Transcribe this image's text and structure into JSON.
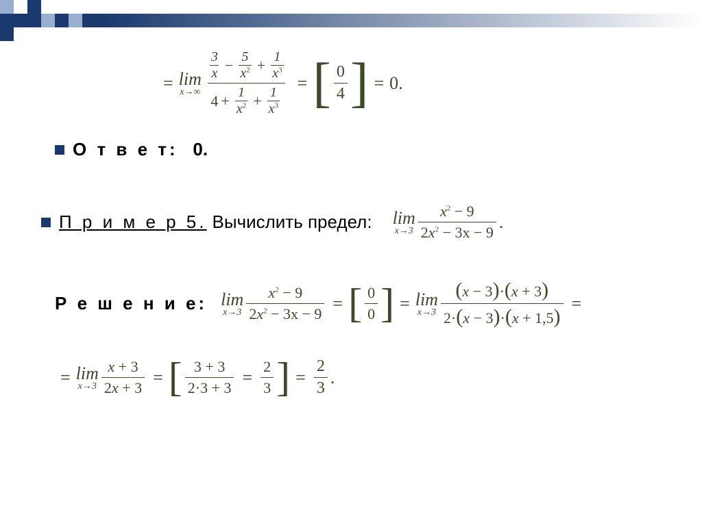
{
  "decoration": {
    "squares": [
      {
        "c": "#9aaed0"
      },
      {
        "c": "transparent"
      },
      {
        "c": "#1a3a6e"
      },
      {
        "c": "transparent"
      },
      {
        "c": "transparent"
      },
      {
        "c": "transparent"
      },
      {
        "c": "transparent"
      },
      {
        "c": "transparent"
      },
      {
        "c": "transparent"
      },
      {
        "c": "transparent"
      },
      {
        "c": "#1a3a6e"
      },
      {
        "c": "#1a3a6e"
      },
      {
        "c": "#9aaed0"
      },
      {
        "c": "transparent"
      },
      {
        "c": "#9aaed0"
      },
      {
        "c": "transparent"
      },
      {
        "c": "transparent"
      },
      {
        "c": "transparent"
      },
      {
        "c": "#1a3a6e"
      },
      {
        "c": "transparent"
      },
      {
        "c": "transparent"
      },
      {
        "c": "transparent"
      },
      {
        "c": "transparent"
      },
      {
        "c": "transparent"
      },
      {
        "c": "transparent"
      },
      {
        "c": "transparent"
      },
      {
        "c": "transparent"
      }
    ]
  },
  "colors": {
    "math": "#3a4a2a",
    "accent": "#1a3a6e",
    "text": "#000000",
    "bg": "#ffffff"
  },
  "typography": {
    "math_font": "Times New Roman",
    "body_font": "Arial",
    "base_size": 26
  },
  "eq1": {
    "lim": "lim",
    "sub": "x→∞",
    "n1": "3",
    "d1": "x",
    "op1": "−",
    "n2": "5",
    "d2": "x",
    "d2e": "2",
    "op2": "+",
    "n3": "1",
    "d3": "x",
    "d3e": "3",
    "den_lead": "4",
    "dop1": "+",
    "dn1": "1",
    "dd1": "x",
    "dd1e": "2",
    "dop2": "+",
    "dn2": "1",
    "dd2": "x",
    "dd2e": "3",
    "br_n": "0",
    "br_d": "4",
    "result": "0",
    "dot": "."
  },
  "answer": {
    "label": "О т в е т:",
    "value": "0."
  },
  "ex5": {
    "label": "П р и м е р  5.",
    "text": "Вычислить предел:",
    "lim": "lim",
    "sub": "x→3",
    "num": "x",
    "ne": "2",
    "nm": "− 9",
    "den_a": "2x",
    "de": "2",
    "den_b": "− 3x − 9",
    "dot": "."
  },
  "sol": {
    "label": "Р е ш е н и е:",
    "lim1": "lim",
    "sub1": "x→3",
    "s1n_a": "x",
    "s1n_e": "2",
    "s1n_b": "− 9",
    "s1d_a": "2x",
    "s1d_e": "2",
    "s1d_b": "− 3x − 9",
    "br1n": "0",
    "br1d": "0",
    "lim2": "lim",
    "sub2": "x→3",
    "s2n": "(x − 3)·(x + 3)",
    "s2d": "2·(x − 3)·(x + 1,5)",
    "lim3": "lim",
    "sub3": "x→3",
    "s3n": "x + 3",
    "s3d": "2x + 3",
    "br2n": "3 + 3",
    "br2d": "2·3 + 3",
    "br3n": "2",
    "br3d": "3",
    "fn": "2",
    "fd": "3",
    "dot": "."
  }
}
